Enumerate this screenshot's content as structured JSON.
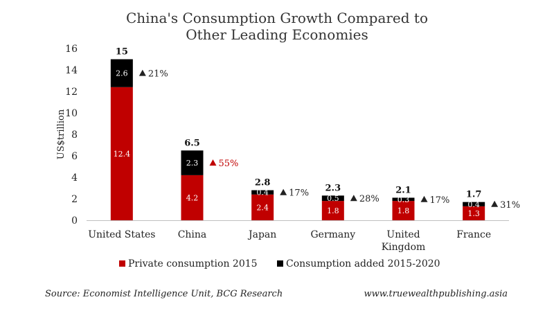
{
  "chart_data": {
    "type": "bar",
    "stacked": true,
    "title_lines": [
      "China's Consumption Growth Compared to",
      "Other Leading Economies"
    ],
    "ylabel": "US$trillion",
    "ylim": [
      0,
      16
    ],
    "yticks": [
      0,
      2,
      4,
      6,
      8,
      10,
      12,
      14,
      16
    ],
    "categories": [
      [
        "United States"
      ],
      [
        "China"
      ],
      [
        "Japan"
      ],
      [
        "Germany"
      ],
      [
        "United",
        "Kingdom"
      ],
      [
        "France"
      ]
    ],
    "series": [
      {
        "name": "Private consumption 2015",
        "color": "#c00000",
        "values": [
          12.4,
          4.2,
          2.4,
          1.8,
          1.8,
          1.3
        ]
      },
      {
        "name": "Consumption added 2015-2020",
        "color": "#000000",
        "values": [
          2.6,
          2.3,
          0.4,
          0.5,
          0.3,
          0.4
        ]
      }
    ],
    "totals": [
      "15",
      "6.5",
      "2.8",
      "2.3",
      "2.1",
      "1.7"
    ],
    "segment_labels": [
      [
        "12.4",
        "4.2",
        "2.4",
        "1.8",
        "1.8",
        "1.3"
      ],
      [
        "2.6",
        "2.3",
        "0.4",
        "0.5",
        "0.3",
        "0.4"
      ]
    ],
    "growth_labels": [
      "21%",
      "55%",
      "17%",
      "28%",
      "17%",
      "31%"
    ],
    "growth_colors": [
      "#222222",
      "#c00000",
      "#222222",
      "#222222",
      "#222222",
      "#222222"
    ],
    "legend_position": "bottom",
    "grid": false
  },
  "footer": {
    "source": "Source: Economist Intelligence Unit, BCG Research",
    "website": "www.truewealthpublishing.asia"
  }
}
